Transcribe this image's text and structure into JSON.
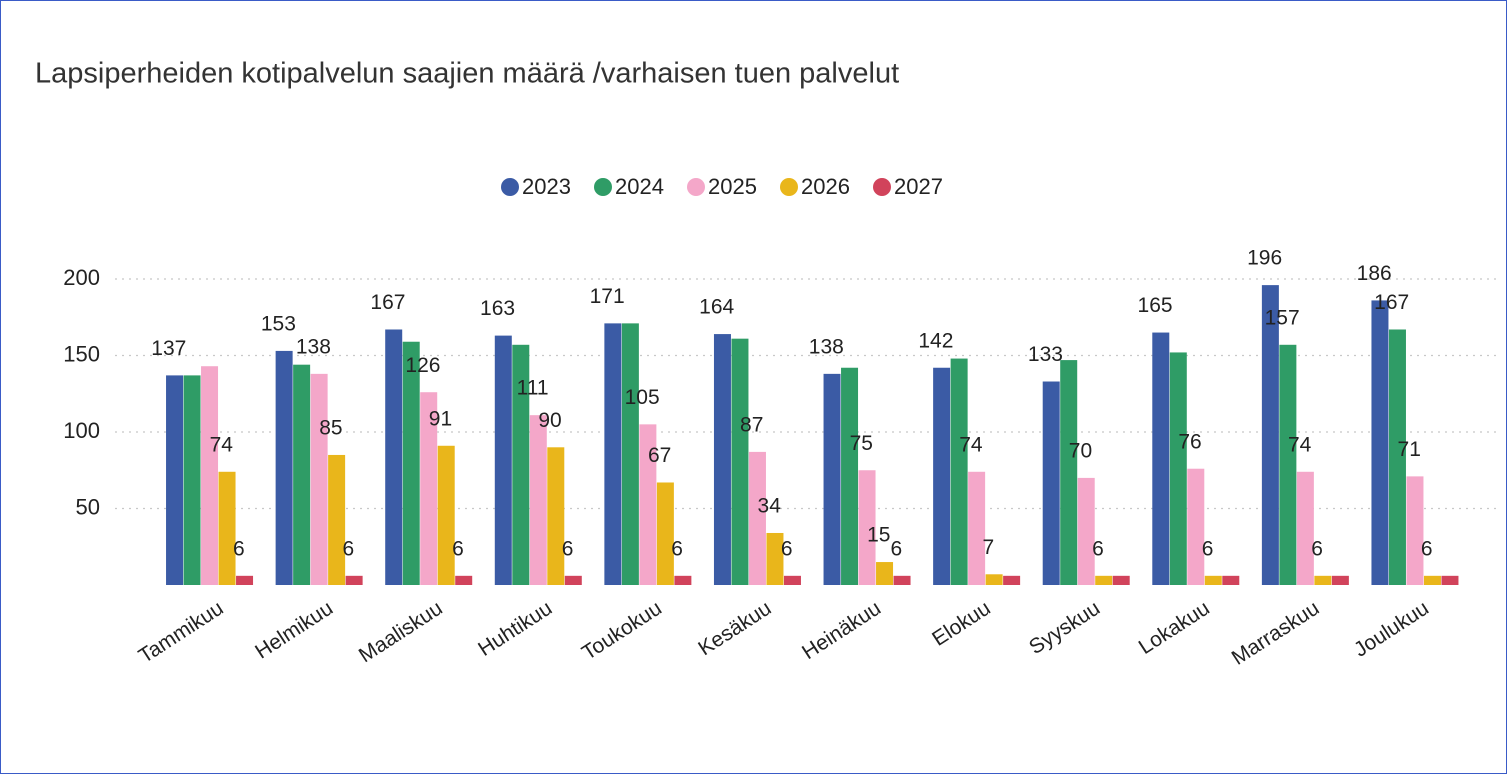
{
  "chart_data": {
    "type": "bar",
    "title": "Lapsiperheiden kotipalvelun saajien määrä /varhaisen tuen palvelut",
    "categories": [
      "Tammikuu",
      "Helmikuu",
      "Maaliskuu",
      "Huhtikuu",
      "Toukokuu",
      "Kesäkuu",
      "Heinäkuu",
      "Elokuu",
      "Syyskuu",
      "Lokakuu",
      "Marraskuu",
      "Joulukuu"
    ],
    "series": [
      {
        "name": "2023",
        "color": "#3b5ba5",
        "values": [
          137,
          153,
          167,
          163,
          171,
          164,
          138,
          142,
          133,
          165,
          196,
          186
        ],
        "value_labels": [
          137,
          153,
          167,
          163,
          171,
          164,
          138,
          142,
          133,
          165,
          196,
          186
        ]
      },
      {
        "name": "2024",
        "color": "#2f9c66",
        "values": [
          137,
          144,
          159,
          157,
          171,
          161,
          142,
          148,
          147,
          152,
          157,
          167
        ],
        "value_labels": [
          null,
          null,
          null,
          null,
          null,
          null,
          null,
          null,
          null,
          null,
          157,
          167
        ]
      },
      {
        "name": "2025",
        "color": "#f4a7c9",
        "values": [
          143,
          138,
          126,
          111,
          105,
          87,
          75,
          74,
          70,
          76,
          74,
          71
        ],
        "value_labels": [
          null,
          138,
          126,
          111,
          105,
          87,
          75,
          74,
          70,
          76,
          74,
          71
        ]
      },
      {
        "name": "2026",
        "color": "#e9b61b",
        "values": [
          74,
          85,
          91,
          90,
          67,
          34,
          15,
          7,
          6,
          6,
          6,
          6
        ],
        "value_labels": [
          74,
          85,
          91,
          90,
          67,
          34,
          15,
          7,
          6,
          6,
          6,
          6
        ]
      },
      {
        "name": "2027",
        "color": "#d1435b",
        "values": [
          6,
          6,
          6,
          6,
          6,
          6,
          6,
          6,
          6,
          6,
          6,
          6
        ],
        "value_labels": [
          6,
          6,
          6,
          6,
          6,
          6,
          6,
          null,
          null,
          null,
          null,
          null
        ]
      }
    ],
    "ylim": [
      0,
      200
    ],
    "yticks": [
      50,
      100,
      150,
      200
    ],
    "grid": true,
    "legend": "top"
  }
}
